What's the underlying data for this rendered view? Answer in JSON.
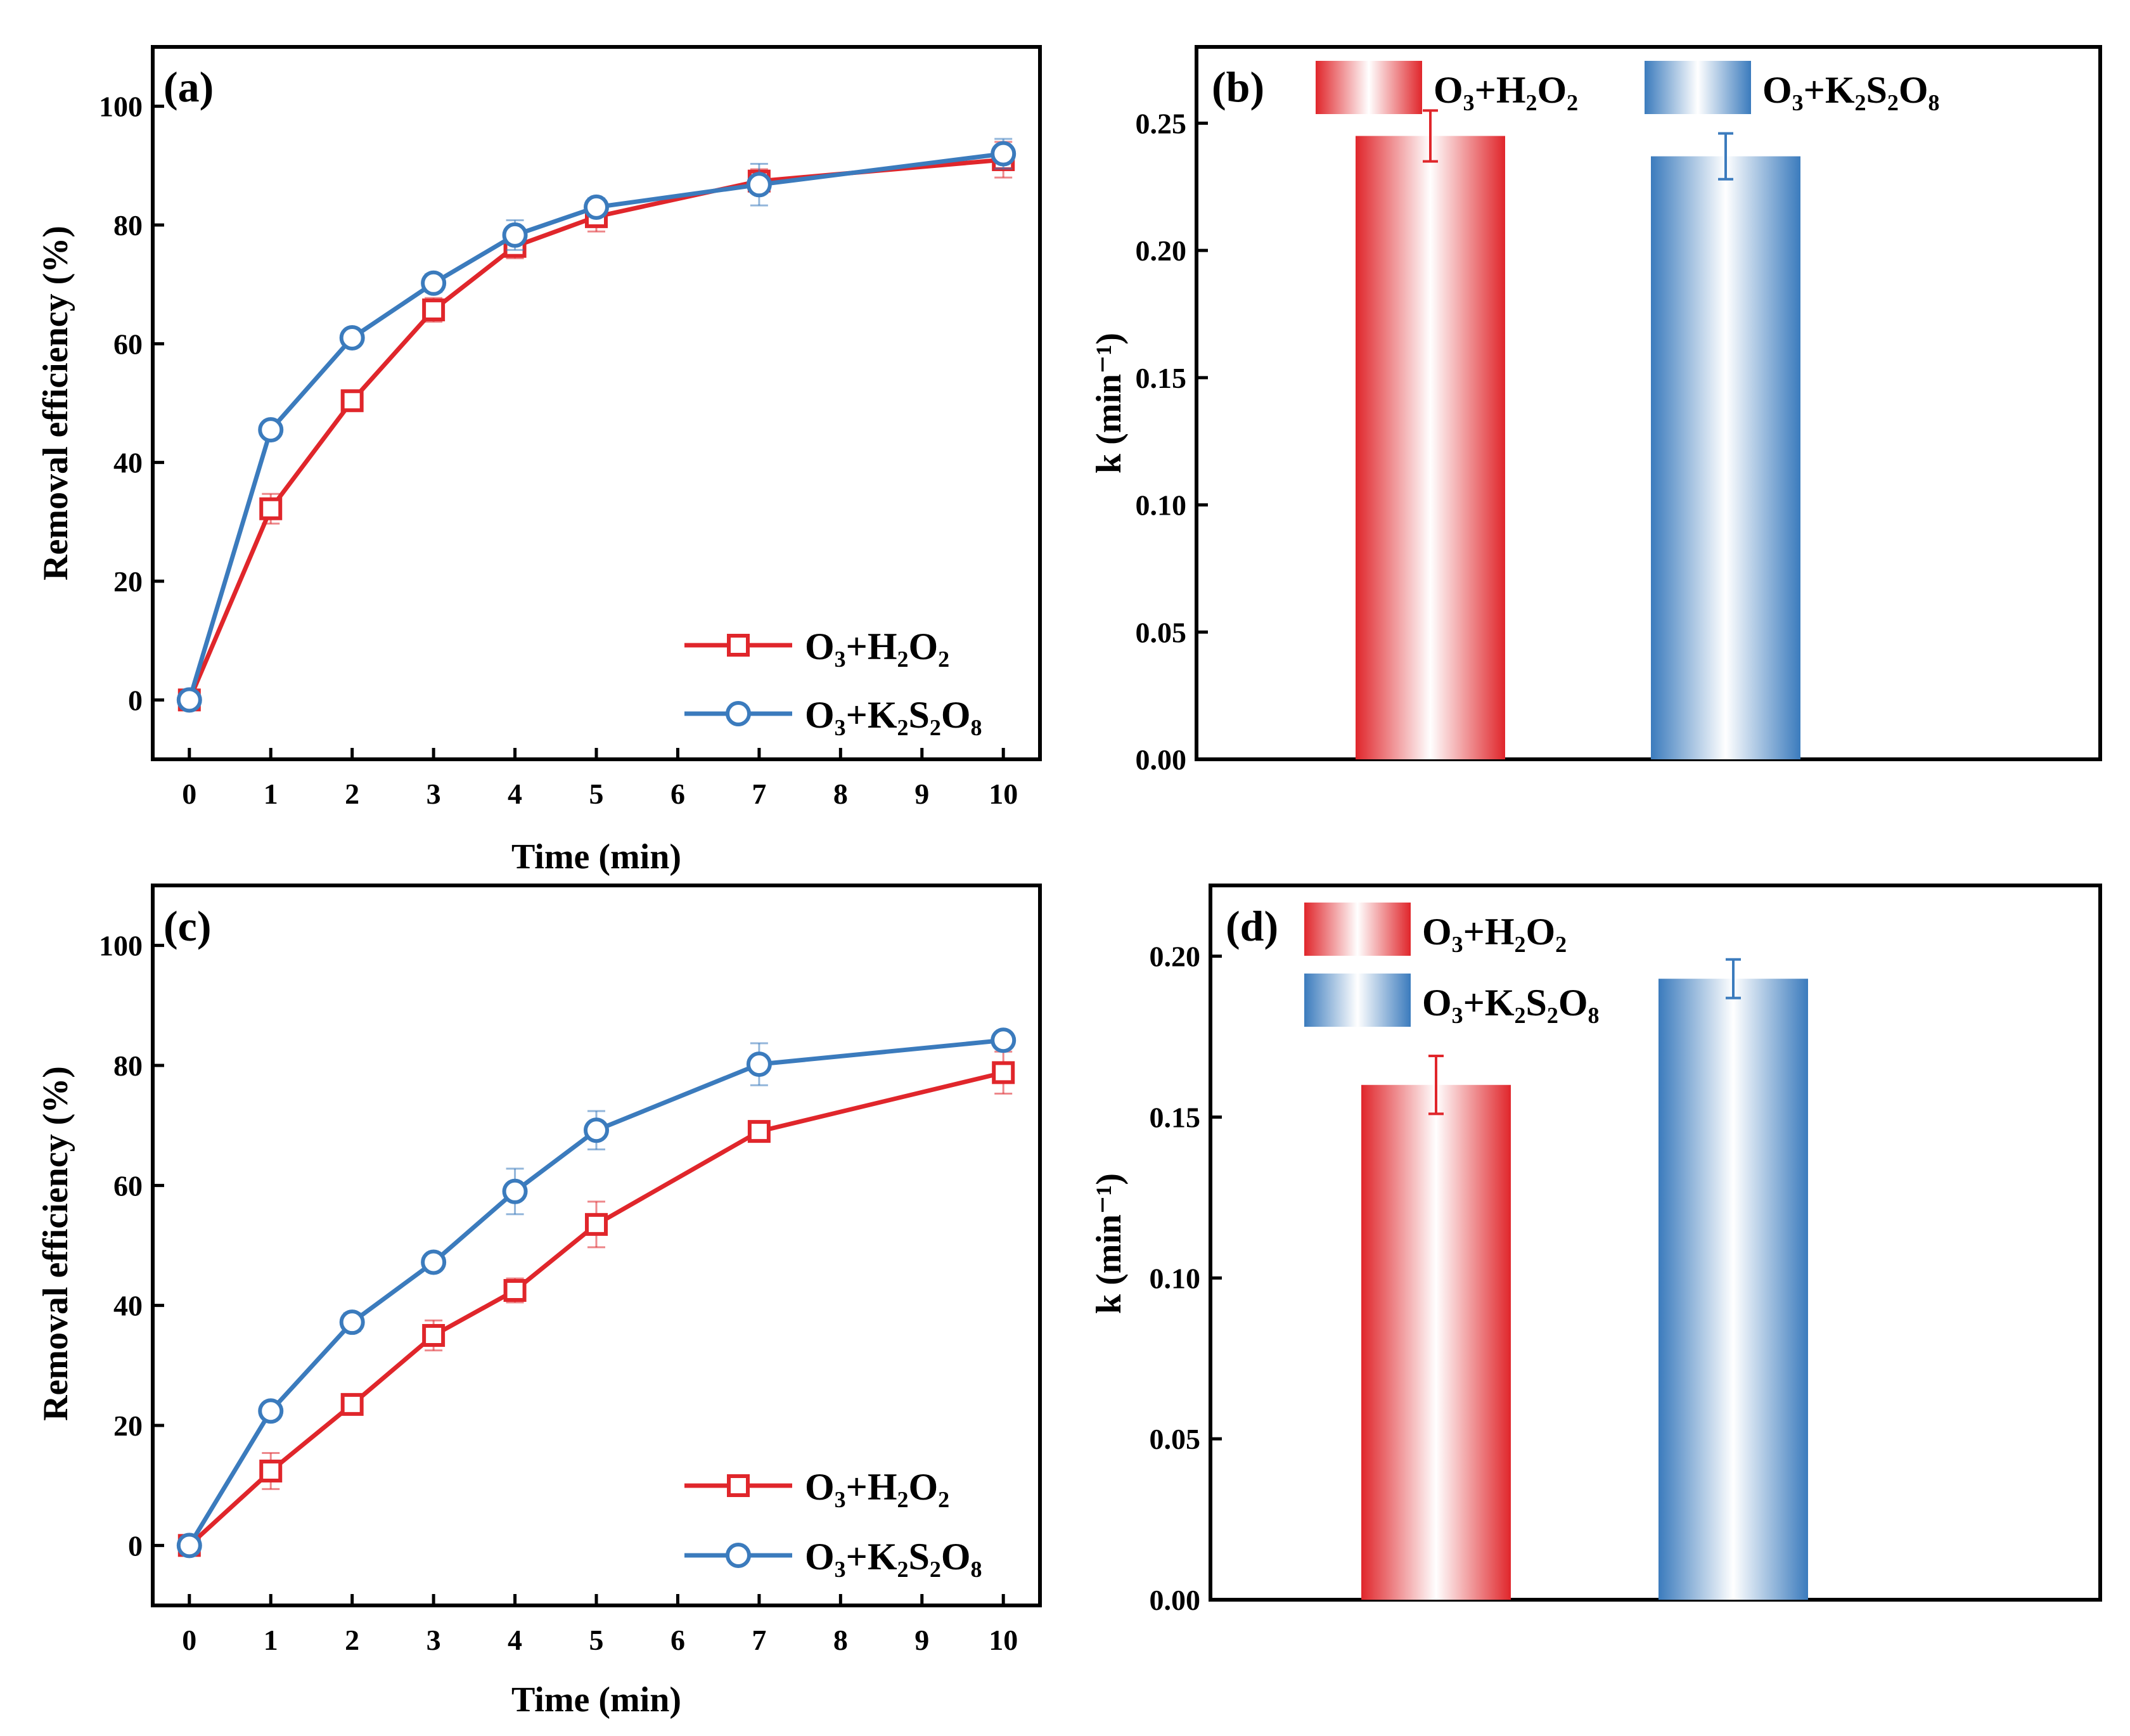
{
  "colors": {
    "red": "#e0262b",
    "blue": "#3b7bbd",
    "axis": "#000000"
  },
  "legend_labels": {
    "h2o2": "O₃+H₂O₂",
    "k2s2o8": "O₃+K₂S₂O₈"
  },
  "chart_data": [
    {
      "panel": "(a)",
      "type": "line",
      "xlabel": "Time (min)",
      "ylabel": "Removal efficiency (%)",
      "xlim": [
        -0.45,
        10.45
      ],
      "ylim": [
        -10,
        110
      ],
      "xticks": [
        0,
        1,
        2,
        3,
        4,
        5,
        6,
        7,
        8,
        9,
        10
      ],
      "xtick_labels": [
        "0",
        "1",
        "2",
        "3",
        "4",
        "5",
        "6",
        "7",
        "8",
        "9",
        "10"
      ],
      "yticks": [
        0,
        20,
        40,
        60,
        80,
        100
      ],
      "ytick_labels": [
        "0",
        "20",
        "40",
        "60",
        "80",
        "100"
      ],
      "legend_position": "bottom-right",
      "series": [
        {
          "name": "O₃+H₂O₂",
          "color": "#e0262b",
          "marker": "square",
          "x": [
            0,
            1,
            2,
            3,
            4,
            5,
            7,
            10
          ],
          "y": [
            0,
            32.2,
            50.4,
            65.7,
            76.4,
            81.4,
            87.4,
            91.0
          ],
          "err": [
            0.6,
            2.5,
            1.0,
            2.0,
            2.0,
            2.5,
            2.0,
            3.0
          ]
        },
        {
          "name": "O₃+K₂S₂O₈",
          "color": "#3b7bbd",
          "marker": "circle",
          "x": [
            0,
            1,
            2,
            3,
            4,
            5,
            7,
            10
          ],
          "y": [
            0,
            45.5,
            61.0,
            70.2,
            78.3,
            83.0,
            86.8,
            92.0
          ],
          "err": [
            0.6,
            1.2,
            1.0,
            1.5,
            2.5,
            1.5,
            3.5,
            2.5
          ]
        }
      ]
    },
    {
      "panel": "(b)",
      "type": "bar",
      "xlabel": "",
      "ylabel": "k (min⁻¹)",
      "ylim": [
        0,
        0.28
      ],
      "yticks": [
        0.0,
        0.05,
        0.1,
        0.15,
        0.2,
        0.25
      ],
      "ytick_labels": [
        "0.00",
        "0.05",
        "0.10",
        "0.15",
        "0.20",
        "0.25"
      ],
      "legend_position": "top",
      "categories": [
        "O₃+H₂O₂",
        "O₃+K₂S₂O₈"
      ],
      "series": [
        {
          "name": "O₃+H₂O₂",
          "color": "#e0262b",
          "value": 0.245,
          "err": 0.01
        },
        {
          "name": "O₃+K₂S₂O₈",
          "color": "#3b7bbd",
          "value": 0.237,
          "err": 0.009
        }
      ]
    },
    {
      "panel": "(c)",
      "type": "line",
      "xlabel": "Time (min)",
      "ylabel": "Removal efficiency (%)",
      "xlim": [
        -0.45,
        10.45
      ],
      "ylim": [
        -10,
        110
      ],
      "xticks": [
        0,
        1,
        2,
        3,
        4,
        5,
        6,
        7,
        8,
        9,
        10
      ],
      "xtick_labels": [
        "0",
        "1",
        "2",
        "3",
        "4",
        "5",
        "6",
        "7",
        "8",
        "9",
        "10"
      ],
      "yticks": [
        0,
        20,
        40,
        60,
        80,
        100
      ],
      "ytick_labels": [
        "0",
        "20",
        "40",
        "60",
        "80",
        "100"
      ],
      "legend_position": "bottom-right",
      "series": [
        {
          "name": "O₃+H₂O₂",
          "color": "#e0262b",
          "marker": "square",
          "x": [
            0,
            1,
            2,
            3,
            4,
            5,
            7,
            10
          ],
          "y": [
            0,
            12.4,
            23.5,
            35.0,
            42.5,
            53.5,
            69.0,
            78.8
          ],
          "err": [
            0.6,
            3.0,
            1.2,
            2.5,
            2.0,
            3.8,
            1.0,
            3.5
          ]
        },
        {
          "name": "O₃+K₂S₂O₈",
          "color": "#3b7bbd",
          "marker": "circle",
          "x": [
            0,
            1,
            2,
            3,
            4,
            5,
            7,
            10
          ],
          "y": [
            0,
            22.4,
            37.2,
            47.2,
            59.0,
            69.2,
            80.2,
            84.2
          ],
          "err": [
            0.6,
            1.0,
            1.5,
            1.0,
            3.8,
            3.2,
            3.5,
            1.0
          ]
        }
      ]
    },
    {
      "panel": "(d)",
      "type": "bar",
      "xlabel": "",
      "ylabel": "k (min⁻¹)",
      "ylim": [
        0,
        0.222
      ],
      "yticks": [
        0.0,
        0.05,
        0.1,
        0.15,
        0.2
      ],
      "ytick_labels": [
        "0.00",
        "0.05",
        "0.10",
        "0.15",
        "0.20"
      ],
      "legend_position": "top-left",
      "categories": [
        "O₃+H₂O₂",
        "O₃+K₂S₂O₈"
      ],
      "series": [
        {
          "name": "O₃+H₂O₂",
          "color": "#e0262b",
          "value": 0.16,
          "err": 0.009
        },
        {
          "name": "O₃+K₂S₂O₈",
          "color": "#3b7bbd",
          "value": 0.193,
          "err": 0.006
        }
      ]
    }
  ]
}
